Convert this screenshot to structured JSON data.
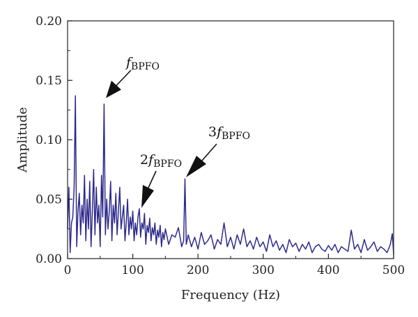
{
  "chart_data": {
    "type": "line",
    "title": "",
    "xlabel": "Frequency (Hz)",
    "ylabel": "Amplitude",
    "xlim": [
      0,
      500
    ],
    "ylim": [
      0,
      0.2
    ],
    "xticks": [
      "0",
      "100",
      "200",
      "300",
      "400",
      "500"
    ],
    "yticks": [
      "0.00",
      "0.05",
      "0.10",
      "0.15",
      "0.20"
    ],
    "grid": false,
    "line_color": "#2e2a8c",
    "series": [
      {
        "x": [
          0,
          2,
          4,
          6,
          8,
          10,
          12,
          14,
          16,
          18,
          20,
          22,
          24,
          26,
          28,
          30,
          32,
          34,
          36,
          38,
          40,
          42,
          44,
          46,
          48,
          50,
          52,
          54,
          56,
          58,
          60,
          62,
          64,
          66,
          68,
          70,
          72,
          74,
          76,
          78,
          80,
          82,
          84,
          86,
          88,
          90,
          92,
          94,
          96,
          98,
          100,
          102,
          104,
          106,
          108,
          110,
          112,
          114,
          116,
          118,
          120,
          122,
          124,
          126,
          128,
          130,
          132,
          134,
          136,
          138,
          140,
          142,
          144,
          146,
          148,
          150,
          155,
          160,
          165,
          170,
          175,
          178,
          180,
          182,
          185,
          190,
          195,
          200,
          205,
          210,
          215,
          220,
          225,
          230,
          235,
          240,
          245,
          250,
          255,
          260,
          265,
          270,
          275,
          280,
          285,
          290,
          295,
          300,
          305,
          310,
          315,
          320,
          325,
          330,
          335,
          340,
          345,
          350,
          355,
          360,
          365,
          370,
          375,
          380,
          385,
          390,
          395,
          400,
          405,
          410,
          415,
          420,
          425,
          430,
          435,
          440,
          445,
          450,
          455,
          460,
          465,
          470,
          475,
          480,
          485,
          490,
          495,
          498,
          500
        ],
        "y": [
          0.025,
          0.06,
          0.005,
          0.03,
          0.035,
          0.06,
          0.137,
          0.01,
          0.04,
          0.055,
          0.02,
          0.045,
          0.03,
          0.07,
          0.015,
          0.05,
          0.025,
          0.065,
          0.01,
          0.04,
          0.075,
          0.02,
          0.06,
          0.03,
          0.045,
          0.01,
          0.07,
          0.035,
          0.13,
          0.02,
          0.05,
          0.025,
          0.04,
          0.065,
          0.015,
          0.045,
          0.03,
          0.055,
          0.02,
          0.04,
          0.06,
          0.025,
          0.035,
          0.045,
          0.015,
          0.03,
          0.05,
          0.02,
          0.035,
          0.025,
          0.04,
          0.015,
          0.03,
          0.02,
          0.035,
          0.042,
          0.018,
          0.03,
          0.025,
          0.038,
          0.012,
          0.028,
          0.022,
          0.034,
          0.015,
          0.026,
          0.02,
          0.03,
          0.012,
          0.024,
          0.018,
          0.028,
          0.01,
          0.022,
          0.016,
          0.025,
          0.012,
          0.02,
          0.018,
          0.026,
          0.01,
          0.015,
          0.067,
          0.012,
          0.02,
          0.01,
          0.018,
          0.008,
          0.022,
          0.012,
          0.015,
          0.02,
          0.008,
          0.016,
          0.012,
          0.03,
          0.01,
          0.018,
          0.008,
          0.02,
          0.012,
          0.025,
          0.01,
          0.015,
          0.008,
          0.018,
          0.01,
          0.014,
          0.006,
          0.02,
          0.01,
          0.015,
          0.007,
          0.012,
          0.005,
          0.016,
          0.01,
          0.013,
          0.006,
          0.012,
          0.008,
          0.014,
          0.005,
          0.01,
          0.012,
          0.008,
          0.006,
          0.011,
          0.007,
          0.012,
          0.005,
          0.01,
          0.008,
          0.006,
          0.024,
          0.008,
          0.012,
          0.005,
          0.016,
          0.007,
          0.01,
          0.014,
          0.006,
          0.01,
          0.008,
          0.005,
          0.012,
          0.021,
          0.004
        ]
      }
    ],
    "annotations": [
      {
        "coef": "",
        "main": "f",
        "sub": "BPFO"
      },
      {
        "coef": "2",
        "main": "f",
        "sub": "BPFO"
      },
      {
        "coef": "3",
        "main": "f",
        "sub": "BPFO"
      }
    ]
  }
}
